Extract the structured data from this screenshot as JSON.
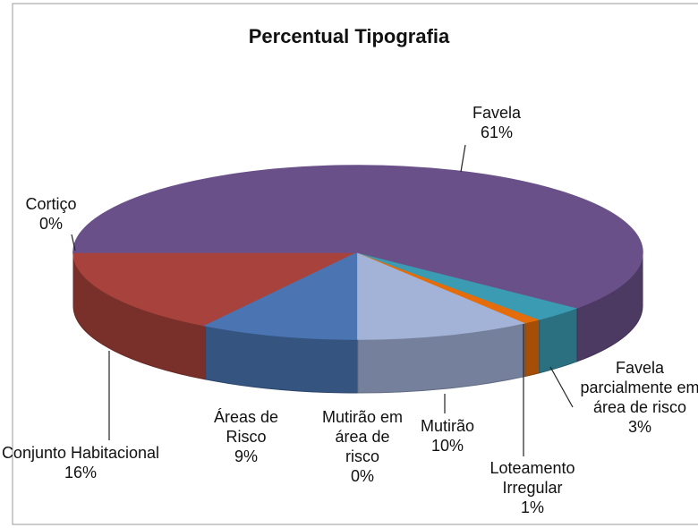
{
  "chart_data": {
    "type": "pie3d",
    "title": "Percentual Tipografia",
    "categories": [
      "Cortiço",
      "Conjunto Habitacional",
      "Áreas de Risco",
      "Mutirão em área de risco",
      "Mutirão",
      "Loteamento Irregular",
      "Favela parcialmente em área de risco",
      "Favela"
    ],
    "values": [
      0,
      16,
      9,
      0,
      10,
      1,
      3,
      61
    ],
    "value_labels": [
      "0%",
      "16%",
      "9%",
      "0%",
      "10%",
      "1%",
      "3%",
      "61%"
    ],
    "colors": [
      "#9bbb59",
      "#a8423c",
      "#4a74b2",
      "#f79646",
      "#a3b3d8",
      "#e46c0a",
      "#3b9bb3",
      "#6a5089"
    ]
  }
}
